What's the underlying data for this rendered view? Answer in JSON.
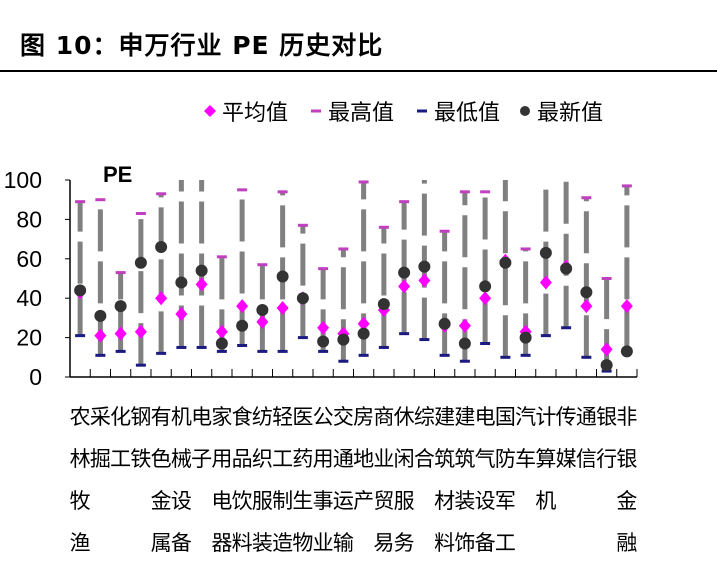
{
  "title": "图 10：申万行业 PE 历史对比",
  "chart_data": {
    "type": "scatter",
    "title": "",
    "ylabel": "PE",
    "ylim": [
      0,
      100
    ],
    "yticks": [
      0,
      20,
      40,
      60,
      80,
      100
    ],
    "legend_position": "top",
    "legend": [
      {
        "name": "平均值",
        "marker": "diamond",
        "color": "#ff00ff"
      },
      {
        "name": "最高值",
        "marker": "dash",
        "color": "#c040c0"
      },
      {
        "name": "最低值",
        "marker": "dash",
        "color": "#1a1a80"
      },
      {
        "name": "最新值",
        "marker": "circle",
        "color": "#333333"
      }
    ],
    "range_bar_color": "#808080",
    "categories": [
      "农林牧渔",
      "采掘",
      "化工",
      "钢铁",
      "有色金属",
      "机械设备",
      "电子",
      "家用电器",
      "食品饮料",
      "纺织服装",
      "轻工制造",
      "医药生物",
      "公用事业",
      "交通运输",
      "房地产",
      "商业贸易",
      "休闲服务",
      "综合",
      "建筑材料",
      "建筑装饰",
      "电气设备",
      "国防军工",
      "汽车",
      "计算机",
      "传媒",
      "通信",
      "银行",
      "非银金融"
    ],
    "series": [
      {
        "name": "平均值",
        "values": [
          43,
          21,
          22,
          23,
          40,
          32,
          47,
          23,
          36,
          28,
          35,
          40,
          25,
          22,
          27,
          34,
          46,
          49,
          26,
          26,
          40,
          59,
          23,
          48,
          56,
          36,
          14,
          36
        ]
      },
      {
        "name": "最高值",
        "values": [
          89,
          90,
          53,
          83,
          93,
          100,
          100,
          61,
          95,
          57,
          94,
          77,
          55,
          65,
          99,
          76,
          89,
          100,
          74,
          94,
          94,
          100,
          65,
          100,
          100,
          91,
          50,
          97
        ]
      },
      {
        "name": "最低值",
        "values": [
          21,
          11,
          13,
          6,
          12,
          15,
          15,
          13,
          16,
          13,
          13,
          20,
          13,
          8,
          11,
          15,
          22,
          19,
          11,
          8,
          17,
          10,
          11,
          21,
          25,
          10,
          3,
          13
        ]
      },
      {
        "name": "最新值",
        "values": [
          44,
          31,
          36,
          58,
          66,
          48,
          54,
          17,
          26,
          34,
          51,
          40,
          18,
          19,
          22,
          37,
          53,
          56,
          27,
          17,
          46,
          58,
          20,
          63,
          55,
          43,
          6,
          13
        ]
      }
    ]
  }
}
